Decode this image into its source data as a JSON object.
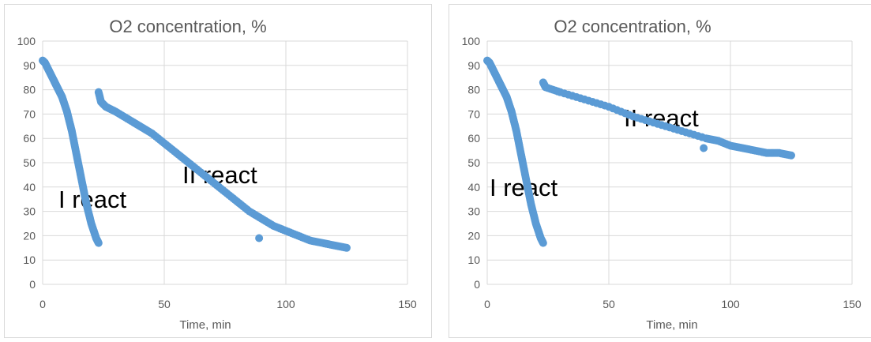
{
  "charts": [
    {
      "title": "O2 concentration, %",
      "xlabel": "Time, min",
      "xticks": [
        "0",
        "50",
        "100",
        "150"
      ],
      "yticks": [
        "0",
        "10",
        "20",
        "30",
        "40",
        "50",
        "60",
        "70",
        "80",
        "90",
        "100"
      ],
      "annotations": [
        "I react",
        "II react"
      ]
    },
    {
      "title": "O2 concentration, %",
      "xlabel": "Time, min",
      "xticks": [
        "0",
        "50",
        "100",
        "150"
      ],
      "yticks": [
        "0",
        "10",
        "20",
        "30",
        "40",
        "50",
        "60",
        "70",
        "80",
        "90",
        "100"
      ],
      "annotations": [
        "I react",
        "II react"
      ]
    }
  ],
  "colors": {
    "series": "#5b9bd5",
    "grid": "#d9d9d9",
    "text": "#595959"
  },
  "chart_data": [
    {
      "type": "scatter",
      "title": "O2 concentration, %",
      "xlabel": "Time, min",
      "ylabel": "",
      "xlim": [
        0,
        150
      ],
      "ylim": [
        0,
        100
      ],
      "grid": true,
      "legend": "none",
      "series": [
        {
          "points": [
            [
              0,
              92
            ],
            [
              1,
              91
            ],
            [
              2,
              89
            ],
            [
              3,
              87
            ],
            [
              4,
              85
            ],
            [
              5,
              83
            ],
            [
              6,
              81
            ],
            [
              7,
              79
            ],
            [
              8,
              77
            ],
            [
              9,
              74
            ],
            [
              10,
              71
            ],
            [
              11,
              67
            ],
            [
              12,
              63
            ],
            [
              13,
              58
            ],
            [
              14,
              53
            ],
            [
              15,
              48
            ],
            [
              16,
              43
            ],
            [
              17,
              38
            ],
            [
              18,
              33
            ],
            [
              19,
              29
            ],
            [
              20,
              25
            ],
            [
              21,
              22
            ],
            [
              22,
              19
            ],
            [
              23,
              17
            ]
          ]
        },
        {
          "points": [
            [
              23,
              79
            ],
            [
              24,
              75
            ],
            [
              26,
              73
            ],
            [
              30,
              71
            ],
            [
              35,
              68
            ],
            [
              40,
              65
            ],
            [
              45,
              62
            ],
            [
              50,
              58
            ],
            [
              55,
              54
            ],
            [
              60,
              50
            ],
            [
              65,
              46
            ],
            [
              70,
              42
            ],
            [
              75,
              38
            ],
            [
              80,
              34
            ],
            [
              85,
              30
            ],
            [
              90,
              27
            ],
            [
              95,
              24
            ],
            [
              100,
              22
            ],
            [
              105,
              20
            ],
            [
              110,
              18
            ],
            [
              115,
              17
            ],
            [
              120,
              16
            ],
            [
              125,
              15
            ],
            [
              89,
              19
            ]
          ]
        }
      ]
    },
    {
      "type": "scatter",
      "title": "O2 concentration, %",
      "xlabel": "Time, min",
      "ylabel": "",
      "xlim": [
        0,
        150
      ],
      "ylim": [
        0,
        100
      ],
      "grid": true,
      "legend": "none",
      "series": [
        {
          "points": [
            [
              0,
              92
            ],
            [
              1,
              91
            ],
            [
              2,
              89
            ],
            [
              3,
              87
            ],
            [
              4,
              85
            ],
            [
              5,
              83
            ],
            [
              6,
              81
            ],
            [
              7,
              79
            ],
            [
              8,
              77
            ],
            [
              9,
              74
            ],
            [
              10,
              71
            ],
            [
              11,
              67
            ],
            [
              12,
              63
            ],
            [
              13,
              58
            ],
            [
              14,
              53
            ],
            [
              15,
              48
            ],
            [
              16,
              43
            ],
            [
              17,
              38
            ],
            [
              18,
              33
            ],
            [
              19,
              29
            ],
            [
              20,
              25
            ],
            [
              21,
              22
            ],
            [
              22,
              19
            ],
            [
              23,
              17
            ]
          ]
        },
        {
          "points": [
            [
              23,
              83
            ],
            [
              24,
              81
            ],
            [
              30,
              79
            ],
            [
              40,
              76
            ],
            [
              50,
              73
            ],
            [
              60,
              69
            ],
            [
              70,
              66
            ],
            [
              80,
              63
            ],
            [
              90,
              60
            ],
            [
              95,
              59
            ],
            [
              100,
              57
            ],
            [
              105,
              56
            ],
            [
              110,
              55
            ],
            [
              115,
              54
            ],
            [
              120,
              54
            ],
            [
              125,
              53
            ],
            [
              89,
              56
            ]
          ]
        }
      ]
    }
  ]
}
